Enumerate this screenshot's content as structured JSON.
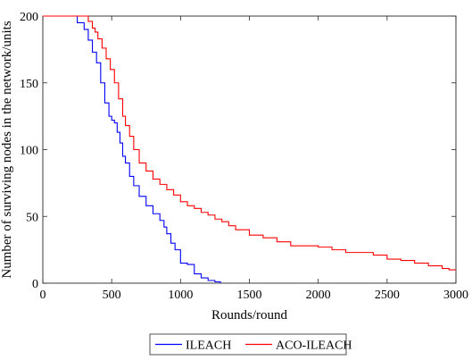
{
  "chart_data": {
    "type": "line",
    "title": "",
    "xlabel": "Rounds/round",
    "ylabel": "Number of surviving nodes in the network/units",
    "xlim": [
      0,
      3000
    ],
    "ylim": [
      0,
      200
    ],
    "x_ticks": [
      0,
      500,
      1000,
      1500,
      2000,
      2500,
      3000
    ],
    "y_ticks": [
      0,
      50,
      100,
      150,
      200
    ],
    "grid": false,
    "legend_position": "bottom-center",
    "series": [
      {
        "name": "ILEACH",
        "color": "#0000ff",
        "step": true,
        "x": [
          0,
          200,
          250,
          300,
          330,
          360,
          390,
          420,
          450,
          480,
          500,
          520,
          540,
          560,
          580,
          600,
          630,
          660,
          700,
          750,
          800,
          850,
          880,
          900,
          930,
          960,
          1000,
          1050,
          1100,
          1150,
          1200,
          1250,
          1290
        ],
        "y": [
          200,
          200,
          195,
          190,
          182,
          173,
          165,
          150,
          135,
          125,
          122,
          120,
          113,
          105,
          95,
          90,
          80,
          73,
          65,
          58,
          52,
          47,
          42,
          37,
          30,
          25,
          15,
          14,
          7,
          4,
          2,
          1,
          0
        ]
      },
      {
        "name": "ACO-ILEACH",
        "color": "#ff0000",
        "step": true,
        "x": [
          0,
          300,
          330,
          360,
          380,
          400,
          430,
          460,
          490,
          520,
          550,
          580,
          600,
          630,
          660,
          700,
          750,
          800,
          850,
          900,
          950,
          1000,
          1050,
          1100,
          1150,
          1200,
          1250,
          1300,
          1350,
          1400,
          1500,
          1600,
          1700,
          1800,
          2000,
          2100,
          2200,
          2400,
          2500,
          2600,
          2700,
          2800,
          2900,
          2950,
          3000
        ],
        "y": [
          200,
          200,
          196,
          191,
          188,
          183,
          176,
          168,
          160,
          150,
          138,
          125,
          118,
          110,
          100,
          90,
          84,
          78,
          74,
          70,
          66,
          61,
          58,
          56,
          53,
          51,
          48,
          46,
          43,
          40,
          36,
          34,
          31,
          28,
          27,
          25,
          23,
          21,
          18,
          17,
          15,
          13,
          11,
          10,
          10
        ]
      }
    ]
  }
}
